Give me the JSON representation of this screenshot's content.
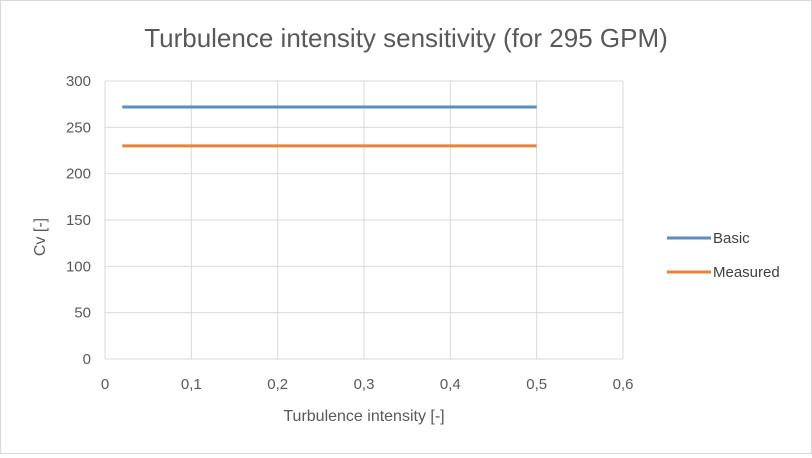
{
  "chart_data": {
    "type": "line",
    "title": "Turbulence intensity sensitivity (for 295 GPM)",
    "xlabel": "Turbulence intensity [-]",
    "ylabel": "Cv [-]",
    "xlim": [
      0,
      0.6
    ],
    "ylim": [
      0,
      300
    ],
    "x_ticks": [
      "0",
      "0,1",
      "0,2",
      "0,3",
      "0,4",
      "0,5",
      "0,6"
    ],
    "y_ticks": [
      "0",
      "50",
      "100",
      "150",
      "200",
      "250",
      "300"
    ],
    "grid": true,
    "legend_position": "right",
    "series": [
      {
        "name": "Basic",
        "color": "#5b8fc4",
        "x": [
          0.02,
          0.5
        ],
        "y": [
          272,
          272
        ]
      },
      {
        "name": "Measured",
        "color": "#e8823a",
        "x": [
          0.02,
          0.5
        ],
        "y": [
          230,
          230
        ]
      }
    ]
  }
}
